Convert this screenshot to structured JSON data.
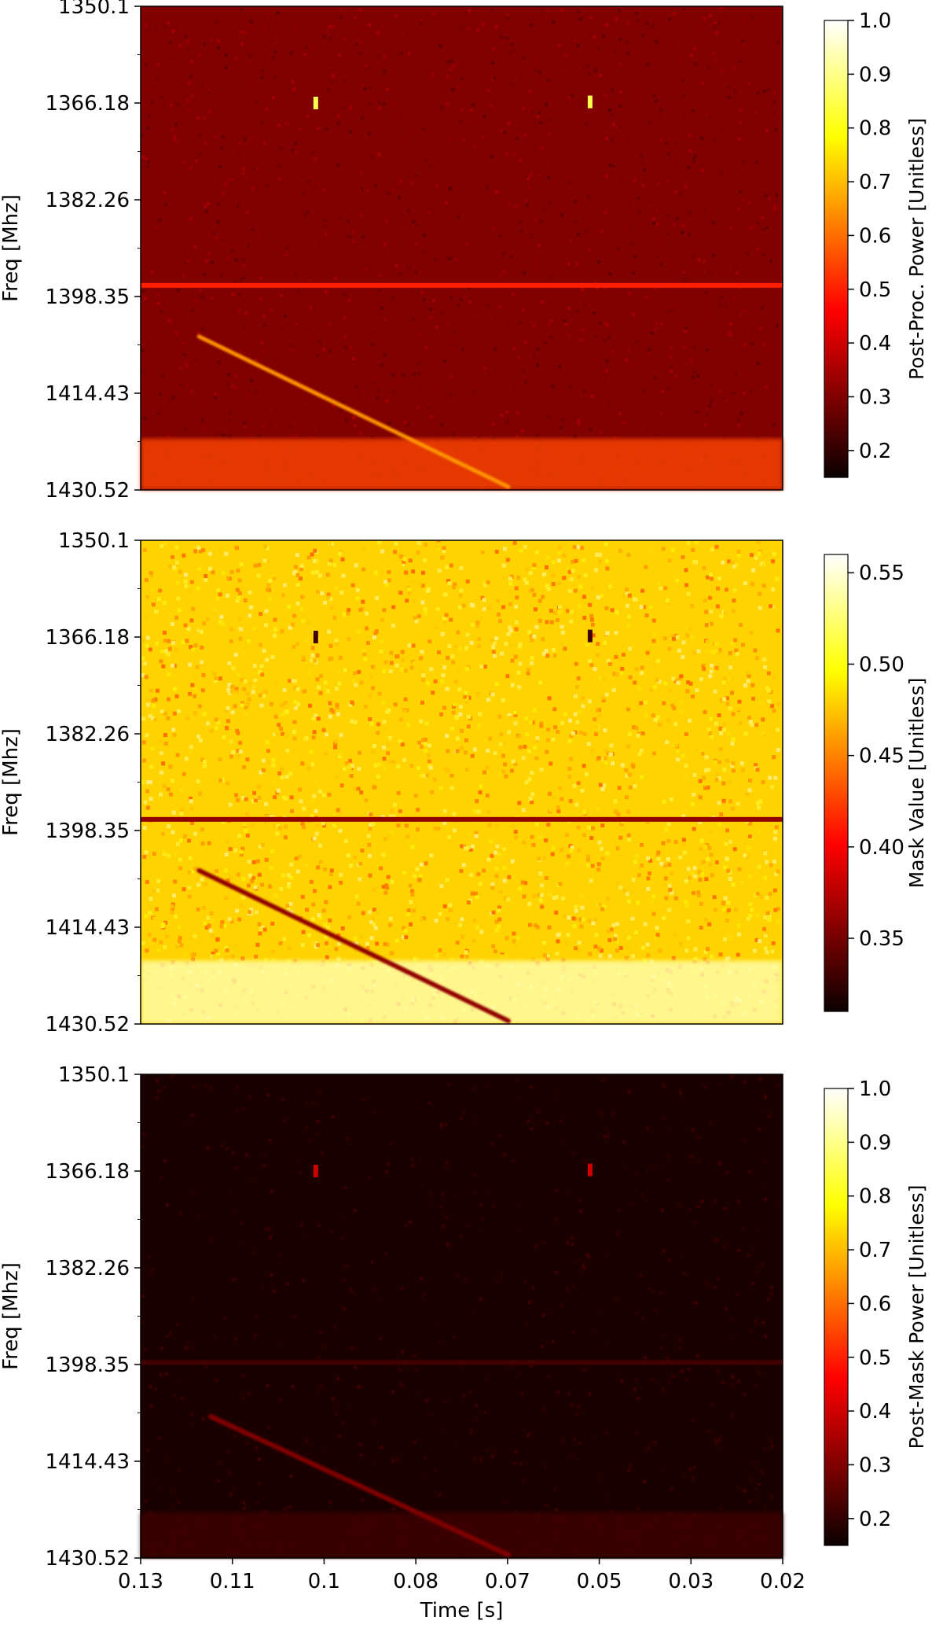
{
  "chart_data": [
    {
      "type": "heatmap",
      "title": "",
      "xlabel": "",
      "ylabel": "Freq [Mhz]",
      "yticks": [
        "1350.1",
        "1366.18",
        "1382.26",
        "1398.35",
        "1414.43",
        "1430.52"
      ],
      "ylim": [
        1350.1,
        1430.52
      ],
      "xlim": [
        0.13,
        0.02
      ],
      "colorbar": {
        "label": "Post-Proc. Power [Unitless]",
        "ticks": [
          "0.2",
          "0.3",
          "0.4",
          "0.5",
          "0.6",
          "0.7",
          "0.8",
          "0.9",
          "1.0"
        ],
        "range": [
          0.15,
          1.0
        ],
        "colormap": "hot"
      },
      "features": {
        "background_level": 0.3,
        "horizontal_line": {
          "freq": 1396.5,
          "value": 0.5
        },
        "diagonal_sweep": {
          "start": [
            0.12,
            1405.0
          ],
          "end": [
            0.067,
            1430.0
          ],
          "value": 0.65
        },
        "hot_spots": [
          {
            "time": 0.1,
            "freq": 1366.18
          },
          {
            "time": 0.053,
            "freq": 1366.0
          }
        ],
        "bottom_noise_band": {
          "from_freq": 1422.0,
          "value": 0.55
        }
      }
    },
    {
      "type": "heatmap",
      "title": "",
      "xlabel": "",
      "ylabel": "Freq [Mhz]",
      "yticks": [
        "1350.1",
        "1366.18",
        "1382.26",
        "1398.35",
        "1414.43",
        "1430.52"
      ],
      "ylim": [
        1350.1,
        1430.52
      ],
      "xlim": [
        0.13,
        0.02
      ],
      "colorbar": {
        "label": "Mask Value [Unitless]",
        "ticks": [
          "0.35",
          "0.40",
          "0.45",
          "0.50",
          "0.55"
        ],
        "range": [
          0.31,
          0.56
        ],
        "colormap": "hot"
      },
      "features": {
        "background_level": 0.48,
        "horizontal_line": {
          "freq": 1396.5,
          "value": 0.36
        },
        "diagonal_sweep": {
          "start": [
            0.12,
            1405.0
          ],
          "end": [
            0.067,
            1430.0
          ],
          "value": 0.36
        },
        "hot_spots": [
          {
            "time": 0.1,
            "freq": 1366.18
          },
          {
            "time": 0.053,
            "freq": 1366.0
          }
        ],
        "bottom_noise_band": {
          "from_freq": 1420.0,
          "value": 0.54
        }
      }
    },
    {
      "type": "heatmap",
      "title": "",
      "xlabel": "Time [s]",
      "ylabel": "Freq [Mhz]",
      "yticks": [
        "1350.1",
        "1366.18",
        "1382.26",
        "1398.35",
        "1414.43",
        "1430.52"
      ],
      "xticks": [
        "0.13",
        "0.11",
        "0.1",
        "0.08",
        "0.07",
        "0.05",
        "0.03",
        "0.02"
      ],
      "ylim": [
        1350.1,
        1430.52
      ],
      "xlim": [
        0.13,
        0.02
      ],
      "colorbar": {
        "label": "Post-Mask Power [Unitless]",
        "ticks": [
          "0.2",
          "0.3",
          "0.4",
          "0.5",
          "0.6",
          "0.7",
          "0.8",
          "0.9",
          "1.0"
        ],
        "range": [
          0.15,
          1.0
        ],
        "colormap": "hot"
      },
      "features": {
        "background_level": 0.17,
        "horizontal_line": {
          "freq": 1398.0,
          "value": 0.22
        },
        "diagonal_sweep": {
          "start": [
            0.118,
            1407.0
          ],
          "end": [
            0.067,
            1430.0
          ],
          "value": 0.3
        },
        "hot_spots": [
          {
            "time": 0.1,
            "freq": 1366.18
          },
          {
            "time": 0.053,
            "freq": 1366.0
          }
        ],
        "bottom_noise_band": {
          "from_freq": 1423.0,
          "value": 0.22
        }
      }
    }
  ]
}
